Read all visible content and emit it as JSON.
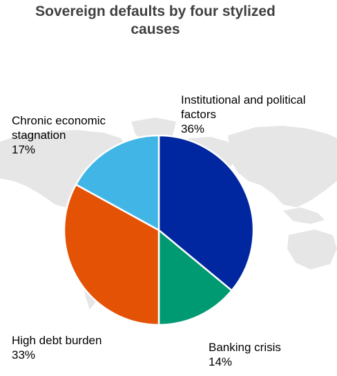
{
  "chart_data": {
    "type": "pie",
    "title_lines": [
      "Sovereign defaults by four stylized",
      "causes"
    ],
    "slices": [
      {
        "name_lines": [
          "Institutional and political",
          "factors"
        ],
        "value": 36,
        "value_label": "36%",
        "color": "#0027A0"
      },
      {
        "name_lines": [
          "Banking crisis"
        ],
        "value": 14,
        "value_label": "14%",
        "color": "#009A72"
      },
      {
        "name_lines": [
          "High debt burden"
        ],
        "value": 33,
        "value_label": "33%",
        "color": "#E35205"
      },
      {
        "name_lines": [
          "Chronic economic",
          "stagnation"
        ],
        "value": 17,
        "value_label": "17%",
        "color": "#41B6E6"
      }
    ],
    "legend": "none",
    "background": "world-map"
  }
}
